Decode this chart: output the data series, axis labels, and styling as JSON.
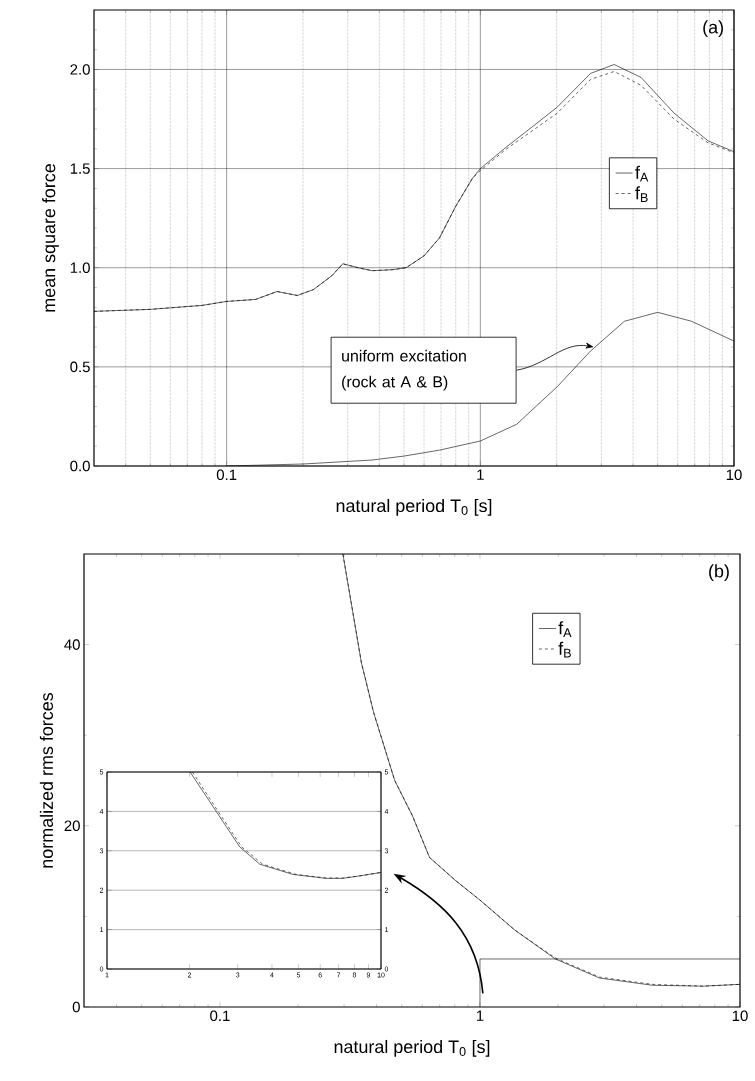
{
  "chart_data": [
    {
      "type": "line",
      "xlabel": "natural period T$_{0}$ [s]",
      "ylabel": "mean square force",
      "log": "x",
      "grid": true,
      "legend": "right",
      "xlim": [
        0.03,
        10
      ],
      "ylim": [
        0,
        2.3
      ],
      "xticks": [
        {
          "value": 0.04,
          "label": null
        },
        {
          "value": 0.05,
          "label": null
        },
        {
          "value": 0.06,
          "label": null
        },
        {
          "value": 0.07,
          "label": null
        },
        {
          "value": 0.08,
          "label": null
        },
        {
          "value": 0.09,
          "label": null
        },
        0.1,
        {
          "value": 0.2,
          "label": null
        },
        {
          "value": 0.3,
          "label": null
        },
        {
          "value": 0.4,
          "label": null
        },
        {
          "value": 0.5,
          "label": null
        },
        {
          "value": 0.6,
          "label": null
        },
        {
          "value": 0.7,
          "label": null
        },
        {
          "value": 0.8,
          "label": null
        },
        {
          "value": 0.9,
          "label": null
        },
        1,
        {
          "value": 2,
          "label": null
        },
        {
          "value": 3,
          "label": null
        },
        {
          "value": 4,
          "label": null
        },
        {
          "value": 5,
          "label": null
        },
        {
          "value": 6,
          "label": null
        },
        {
          "value": 7,
          "label": null
        },
        {
          "value": 8,
          "label": null
        },
        {
          "value": 9,
          "label": null
        },
        10
      ],
      "yticks": [
        {
          "value": 0,
          "label": "0.0"
        },
        {
          "value": 0.1,
          "label": null
        },
        {
          "value": 0.2,
          "label": null
        },
        {
          "value": 0.3,
          "label": null
        },
        {
          "value": 0.4,
          "label": null
        },
        {
          "value": 0.5,
          "label": "0.5"
        },
        {
          "value": 0.6,
          "label": null
        },
        {
          "value": 0.7,
          "label": null
        },
        {
          "value": 0.8,
          "label": null
        },
        {
          "value": 0.9,
          "label": null
        },
        {
          "value": 1,
          "label": "1.0"
        },
        {
          "value": 1.1,
          "label": null
        },
        {
          "value": 1.2,
          "label": null
        },
        {
          "value": 1.3,
          "label": null
        },
        {
          "value": 1.4,
          "label": null
        },
        {
          "value": 1.5,
          "label": "1.5"
        },
        {
          "value": 1.6,
          "label": null
        },
        {
          "value": 1.7,
          "label": null
        },
        {
          "value": 1.8,
          "label": null
        },
        {
          "value": 1.9,
          "label": null
        },
        {
          "value": 2,
          "label": "2.0"
        },
        {
          "value": 2.1,
          "label": null
        },
        {
          "value": 2.2,
          "label": null
        }
      ],
      "series": [
        {
          "name": "f$_{A}$",
          "color": "#000000",
          "line_style": "solid",
          "x": [
            0.03,
            0.05,
            0.08,
            0.1,
            0.13,
            0.158,
            0.19,
            0.22,
            0.26,
            0.287,
            0.33,
            0.374,
            0.45,
            0.51,
            0.6,
            0.69,
            0.8,
            0.93,
            1,
            1.27,
            1.6,
            2.01,
            2.72,
            3.37,
            4.3,
            5.8,
            7.9,
            10
          ],
          "values": [
            0.78,
            0.79,
            0.81,
            0.83,
            0.84,
            0.88,
            0.86,
            0.89,
            0.96,
            1.02,
            1.0,
            0.985,
            0.99,
            1.0,
            1.06,
            1.15,
            1.31,
            1.45,
            1.5,
            1.61,
            1.71,
            1.81,
            1.98,
            2.025,
            1.96,
            1.78,
            1.64,
            1.585
          ]
        },
        {
          "name": "f$_{B}$",
          "color": "#000000",
          "line_style": "dashed",
          "x": [
            0.03,
            0.05,
            0.08,
            0.1,
            0.13,
            0.158,
            0.19,
            0.22,
            0.26,
            0.287,
            0.33,
            0.374,
            0.45,
            0.51,
            0.6,
            0.69,
            0.8,
            0.93,
            1,
            1.27,
            1.6,
            2.01,
            2.72,
            3.37,
            4.3,
            5.8,
            7.9,
            10
          ],
          "values": [
            0.78,
            0.79,
            0.81,
            0.83,
            0.84,
            0.88,
            0.86,
            0.89,
            0.96,
            1.02,
            1.0,
            0.985,
            0.99,
            1.0,
            1.06,
            1.15,
            1.31,
            1.45,
            1.49,
            1.6,
            1.69,
            1.78,
            1.95,
            1.99,
            1.92,
            1.75,
            1.63,
            1.58
          ]
        },
        {
          "color": "#000000",
          "line_style": "solid",
          "x": [
            0.1,
            0.2,
            0.374,
            0.5,
            0.69,
            1,
            1.39,
            2.01,
            2.72,
            3.7,
            5.0,
            6.8,
            10
          ],
          "values": [
            0,
            0.01,
            0.03,
            0.05,
            0.08,
            0.126,
            0.21,
            0.4,
            0.58,
            0.73,
            0.775,
            0.73,
            0.63
          ]
        }
      ],
      "annotations": [
        "(a)",
        "uniform excitation (rock at A & B)"
      ]
    },
    {
      "type": "line",
      "xlabel": "natural period T$_{0}$ [s]",
      "ylabel": "normalized rms forces",
      "log": "x",
      "grid": false,
      "legend": "top",
      "xlim": [
        0.03,
        10
      ],
      "ylim": [
        0,
        50
      ],
      "xticks": [
        {
          "value": 0.04,
          "label": null
        },
        {
          "value": 0.05,
          "label": null
        },
        {
          "value": 0.06,
          "label": null
        },
        {
          "value": 0.07,
          "label": null
        },
        {
          "value": 0.08,
          "label": null
        },
        {
          "value": 0.09,
          "label": null
        },
        0.1,
        {
          "value": 0.2,
          "label": null
        },
        {
          "value": 0.3,
          "label": null
        },
        {
          "value": 0.4,
          "label": null
        },
        {
          "value": 0.5,
          "label": null
        },
        {
          "value": 0.6,
          "label": null
        },
        {
          "value": 0.7,
          "label": null
        },
        {
          "value": 0.8,
          "label": null
        },
        {
          "value": 0.9,
          "label": null
        },
        1,
        {
          "value": 2,
          "label": null
        },
        {
          "value": 3,
          "label": null
        },
        {
          "value": 4,
          "label": null
        },
        {
          "value": 5,
          "label": null
        },
        {
          "value": 6,
          "label": null
        },
        {
          "value": 7,
          "label": null
        },
        {
          "value": 8,
          "label": null
        },
        {
          "value": 9,
          "label": null
        },
        10
      ],
      "yticks": [
        0,
        {
          "value": 10,
          "label": null
        },
        20,
        {
          "value": 30,
          "label": null
        },
        40
      ],
      "series": [
        {
          "name": "f$_{A}$",
          "color": "#000000",
          "line_style": "solid",
          "x": [
            0.297,
            0.35,
            0.39,
            0.47,
            0.55,
            0.64,
            0.81,
            1,
            1.36,
            1.95,
            2.88,
            4.6,
            7.2,
            10
          ],
          "values": [
            50,
            38,
            32.5,
            25,
            21.1,
            16.5,
            13.9,
            11.8,
            8.5,
            5.3,
            3.2,
            2.4,
            2.3,
            2.5
          ]
        },
        {
          "name": "f$_{B}$",
          "color": "#000000",
          "line_style": "dashed",
          "x": [
            0.297,
            0.35,
            0.39,
            0.47,
            0.55,
            0.64,
            0.81,
            1,
            1.36,
            1.95,
            2.88,
            4.6,
            7.2,
            10
          ],
          "values": [
            50,
            38,
            32.5,
            25,
            21.1,
            16.5,
            13.9,
            11.8,
            8.5,
            5.4,
            3.3,
            2.5,
            2.3,
            2.5
          ]
        },
        {
          "color": "#000000",
          "line_style": "solid",
          "x": [
            1,
            1,
            10
          ],
          "values": [
            0,
            5.3,
            5.3
          ]
        }
      ],
      "annotations": [
        "(b)"
      ]
    },
    {
      "type": "line",
      "log": "x",
      "grid": "y",
      "xlim": [
        1,
        10
      ],
      "ylim": [
        0,
        5
      ],
      "y2lim": [
        0,
        5
      ],
      "xticks": [
        1,
        2,
        3,
        4,
        5,
        6,
        7,
        8,
        9,
        10
      ],
      "yticks": [
        0,
        1,
        2,
        3,
        4,
        5
      ],
      "y2ticks": [
        0,
        1,
        2,
        3,
        4,
        5
      ],
      "series": [
        {
          "color": "#000000",
          "line_style": "solid",
          "x": [
            2.01,
            2.51,
            3.05,
            3.61,
            4.77,
            6.3,
            7.25,
            8.3,
            10
          ],
          "values": [
            5,
            3.99,
            3.1,
            2.66,
            2.4,
            2.3,
            2.3,
            2.36,
            2.45
          ]
        },
        {
          "color": "#000000",
          "line_style": "dashed",
          "x": [
            2.05,
            2.55,
            3.1,
            3.7,
            4.9,
            6.3,
            7.25,
            8.3,
            10
          ],
          "values": [
            5,
            3.99,
            3.1,
            2.66,
            2.4,
            2.31,
            2.31,
            2.36,
            2.45
          ]
        }
      ]
    }
  ]
}
